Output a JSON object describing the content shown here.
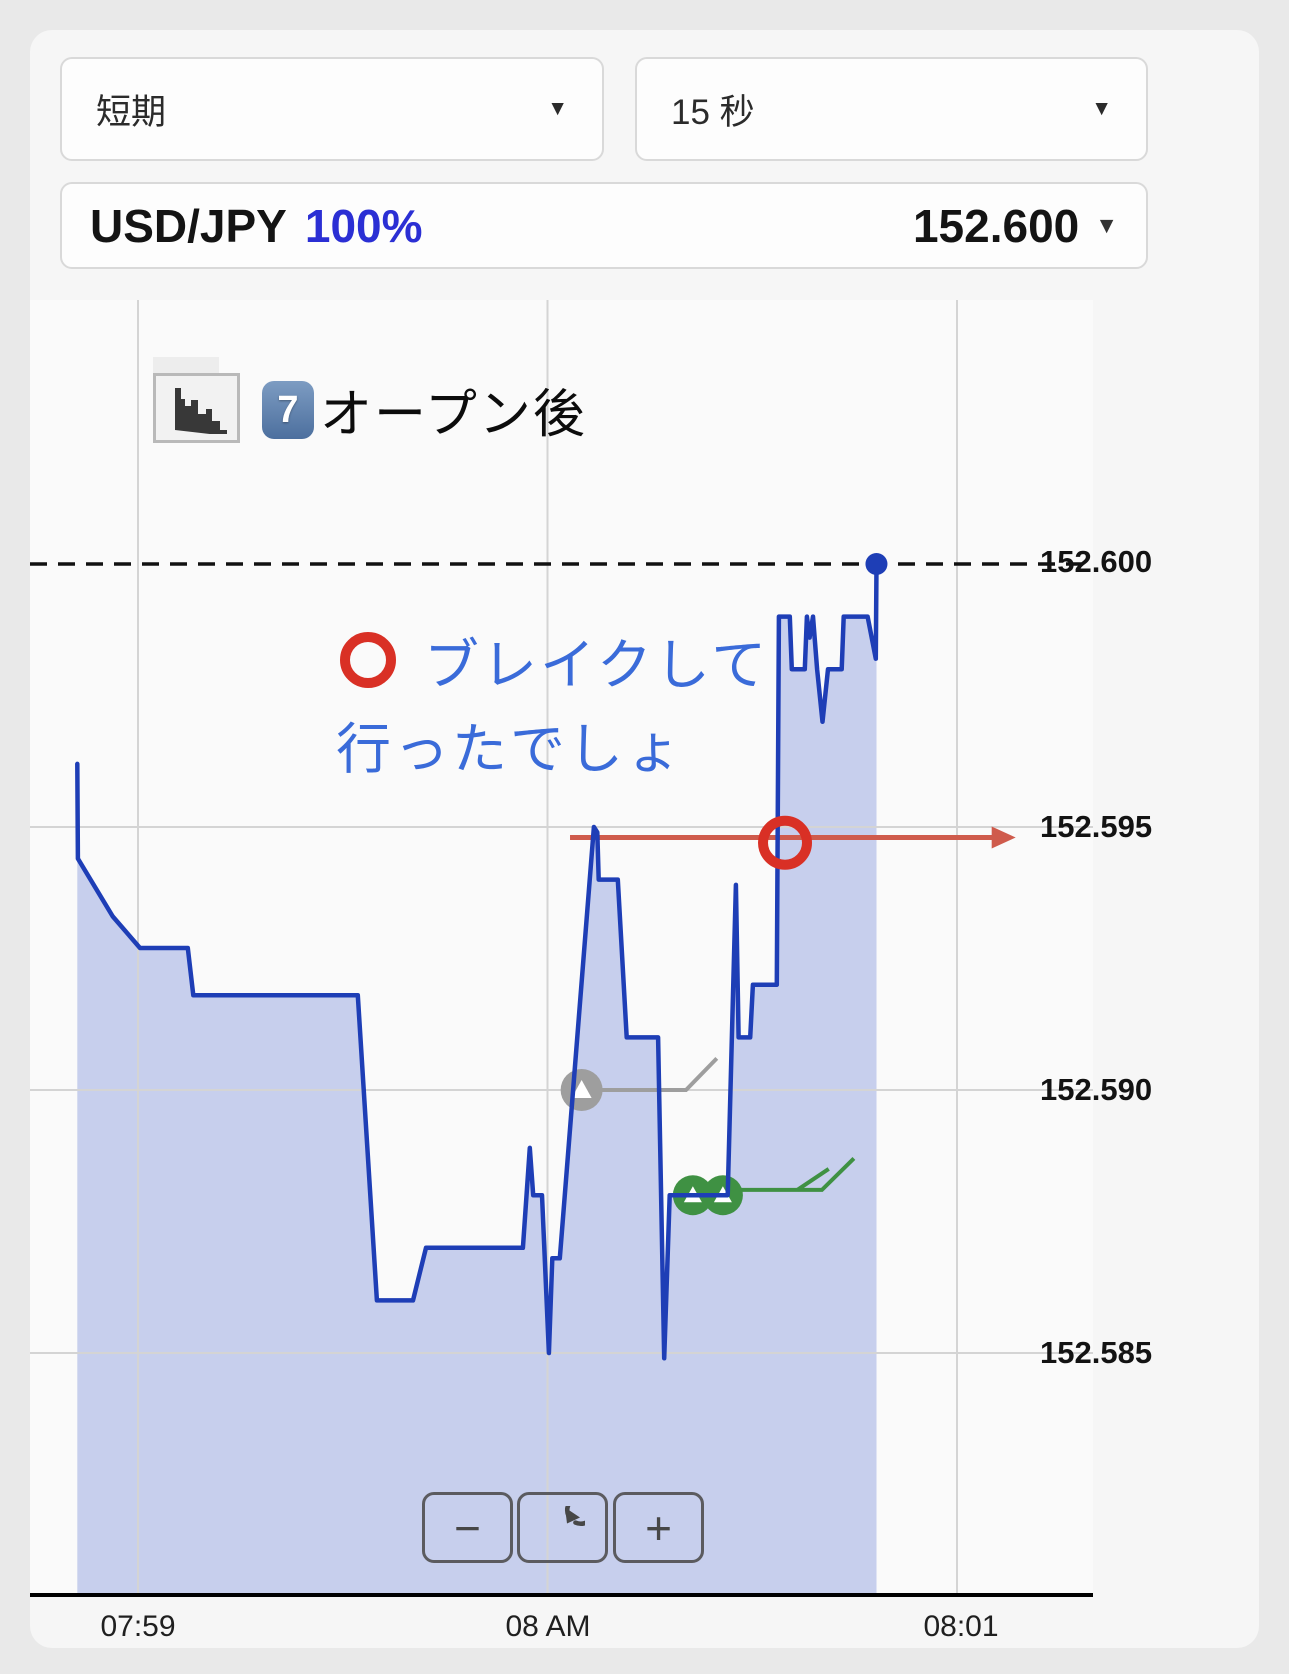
{
  "toolbar": {
    "period": {
      "value": "短期",
      "caret": "▼"
    },
    "interval": {
      "value": "15 秒",
      "caret": "▼"
    },
    "pair": {
      "symbol": "USD/JPY",
      "payout": "100%",
      "price": "152.600",
      "caret": "▼"
    }
  },
  "chart": {
    "legend": {
      "keycap": "7",
      "title": "オープン後"
    },
    "annotation": {
      "line1": "ブレイクして",
      "line2": "行ったでしょ"
    },
    "y_labels": [
      "152.600",
      "152.595",
      "152.590",
      "152.585"
    ],
    "x_labels": [
      "07:59",
      "08 AM",
      "08:01"
    ],
    "controls": {
      "zoom_out": "−",
      "zoom_in": "+"
    }
  },
  "colors": {
    "accent_blue": "#2b2fd4",
    "line_blue": "#1e3eb6",
    "area_fill": "rgba(63,94,205,0.27)",
    "annotation_blue": "#3a6bd9",
    "emoji_red": "#d93025",
    "arrow_red": "#cf5b4c",
    "gray_marker": "#9e9e9e",
    "green_marker": "#3f9143",
    "grid": "#d4d4d4",
    "dashed_ref": "#111111"
  },
  "chart_data": {
    "type": "area",
    "pair": "USD/JPY",
    "interval_setting": "15 秒",
    "x_axis": {
      "labels": [
        "07:59",
        "08 AM",
        "08:01"
      ],
      "t_seconds": [
        0,
        60,
        120
      ]
    },
    "y_axis": {
      "tick_values": [
        152.6,
        152.595,
        152.59,
        152.585
      ],
      "ylim": [
        152.5804,
        152.605
      ]
    },
    "reference_price": 152.6,
    "grid_t": [
      0,
      60,
      120
    ],
    "grid_p": [
      152.595,
      152.59,
      152.585
    ],
    "series": [
      [
        -8.9,
        152.5962
      ],
      [
        -8.8,
        152.5944
      ],
      [
        -3.7,
        152.5933
      ],
      [
        0.3,
        152.5927
      ],
      [
        7.3,
        152.5927
      ],
      [
        8.1,
        152.5918
      ],
      [
        32.2,
        152.5918
      ],
      [
        35,
        152.586
      ],
      [
        40.3,
        152.586
      ],
      [
        42.2,
        152.587
      ],
      [
        56.4,
        152.587
      ],
      [
        57.4,
        152.5889
      ],
      [
        57.9,
        152.588
      ],
      [
        59.2,
        152.588
      ],
      [
        60.2,
        152.585
      ],
      [
        60.7,
        152.5868
      ],
      [
        61.8,
        152.5868
      ],
      [
        66.8,
        152.595
      ],
      [
        67.3,
        152.5949
      ],
      [
        67.5,
        152.594
      ],
      [
        70.3,
        152.594
      ],
      [
        71.6,
        152.591
      ],
      [
        76.2,
        152.591
      ],
      [
        77.1,
        152.5849
      ],
      [
        77.9,
        152.588
      ],
      [
        86.4,
        152.588
      ],
      [
        87.6,
        152.5939
      ],
      [
        88,
        152.591
      ],
      [
        89.7,
        152.591
      ],
      [
        90.1,
        152.592
      ],
      [
        93.6,
        152.592
      ],
      [
        93.9,
        152.599
      ],
      [
        95.5,
        152.599
      ],
      [
        95.8,
        152.598
      ],
      [
        97.7,
        152.598
      ],
      [
        98,
        152.599
      ],
      [
        98.4,
        152.5986
      ],
      [
        98.9,
        152.599
      ],
      [
        99.5,
        152.598
      ],
      [
        100.3,
        152.597
      ],
      [
        101.1,
        152.598
      ],
      [
        103.1,
        152.598
      ],
      [
        103.4,
        152.599
      ],
      [
        106.9,
        152.599
      ],
      [
        108.1,
        152.5982
      ],
      [
        108.2,
        152.6
      ]
    ],
    "end_dot": {
      "t": 108.2,
      "p": 152.6
    },
    "gray_marker": {
      "t": 65,
      "p": 152.59,
      "trend": [
        [
          65,
          152.59
        ],
        [
          80.3,
          152.59
        ],
        [
          84.8,
          152.5906
        ]
      ]
    },
    "green_markers": [
      {
        "t": 81.3,
        "p": 152.588
      },
      {
        "t": 85.7,
        "p": 152.588
      }
    ],
    "green_trend": [
      [
        88.3,
        152.5881
      ],
      [
        100.2,
        152.5881
      ],
      [
        104.9,
        152.5887
      ]
    ],
    "green_trend2": [
      [
        96.6,
        152.5881
      ],
      [
        101.2,
        152.5885
      ]
    ],
    "red_arrow": {
      "from_t": 63.3,
      "to_t": 128.6,
      "p": 152.5948
    },
    "red_circle": {
      "t": 94.8,
      "p": 152.5947
    }
  }
}
